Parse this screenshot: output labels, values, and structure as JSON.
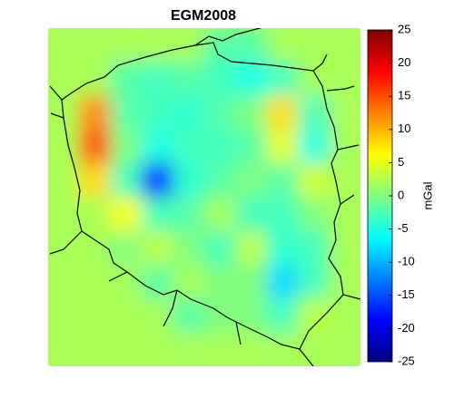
{
  "chart_data": {
    "type": "heatmap",
    "title": "EGM2008",
    "colorbar_label": "mGal",
    "colormap": "jet",
    "zlim": [
      -25,
      25
    ],
    "zticks": [
      -25,
      -20,
      -15,
      -10,
      -5,
      0,
      5,
      10,
      15,
      20,
      25
    ],
    "z": [
      [
        2,
        2,
        2,
        2,
        2,
        -2,
        -2,
        2,
        2,
        2
      ],
      [
        2,
        2,
        -2,
        -3,
        -2,
        -3,
        -5,
        -3,
        2,
        2
      ],
      [
        2,
        12,
        -2,
        -3,
        -4,
        -2,
        0,
        8,
        -3,
        2
      ],
      [
        2,
        15,
        0,
        -5,
        -3,
        -3,
        -2,
        5,
        -5,
        2
      ],
      [
        2,
        8,
        -3,
        -18,
        -4,
        -2,
        0,
        -2,
        4,
        2
      ],
      [
        2,
        2,
        6,
        -3,
        -2,
        2,
        -3,
        -3,
        0,
        2
      ],
      [
        2,
        2,
        0,
        3,
        0,
        -3,
        3,
        -4,
        -3,
        2
      ],
      [
        2,
        2,
        2,
        -2,
        2,
        0,
        0,
        -8,
        -3,
        2
      ],
      [
        2,
        2,
        2,
        2,
        -2,
        0,
        0,
        -3,
        3,
        2
      ],
      [
        2,
        2,
        2,
        2,
        2,
        2,
        2,
        2,
        2,
        2
      ]
    ]
  }
}
